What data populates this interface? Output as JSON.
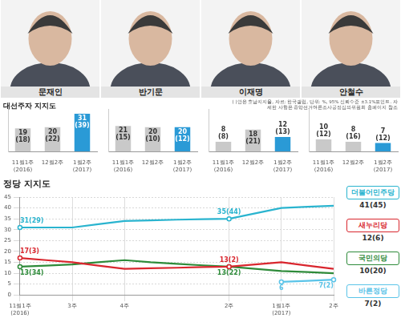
{
  "heading": "대선주자 지지도",
  "note": "( )안은 호남지지율, 자료: 한국갤럽, 단위: %, 95% 신뢰수준 ±3.1%포인트. 자세한 사항은 중앙선거여론조사공정심의위원회 홈페이지 참조",
  "chart_data": [
    {
      "type": "bar",
      "title": "문재인",
      "categories": [
        "11월1주(2016)",
        "12월2주",
        "1월2주(2017)"
      ],
      "values": [
        19,
        20,
        31
      ],
      "value_labels": [
        "19(18)",
        "20(22)",
        "31(39)"
      ],
      "colors": [
        "#c9c9c9",
        "#c9c9c9",
        "#2a9ad6"
      ],
      "ylim": [
        0,
        35
      ],
      "tick_labels": "x",
      "data_labels": true
    },
    {
      "type": "bar",
      "title": "반기문",
      "categories": [
        "11월1주(2016)",
        "12월2주",
        "1월2주(2017)"
      ],
      "values": [
        21,
        20,
        20
      ],
      "value_labels": [
        "21(15)",
        "20(10)",
        "20(12)"
      ],
      "colors": [
        "#c9c9c9",
        "#c9c9c9",
        "#2a9ad6"
      ],
      "ylim": [
        0,
        35
      ],
      "tick_labels": "x",
      "data_labels": true
    },
    {
      "type": "bar",
      "title": "이재명",
      "categories": [
        "11월1주(2016)",
        "12월2주",
        "1월2주(2017)"
      ],
      "values": [
        8,
        18,
        12
      ],
      "value_labels": [
        "8(8)",
        "18(21)",
        "12(13)"
      ],
      "colors": [
        "#c9c9c9",
        "#c9c9c9",
        "#2a9ad6"
      ],
      "ylim": [
        0,
        35
      ],
      "tick_labels": "x",
      "data_labels": true
    },
    {
      "type": "bar",
      "title": "안철수",
      "categories": [
        "11월1주(2016)",
        "12월2주",
        "1월2주(2017)"
      ],
      "values": [
        10,
        8,
        7
      ],
      "value_labels": [
        "10(12)",
        "8(16)",
        "7(12)"
      ],
      "colors": [
        "#c9c9c9",
        "#c9c9c9",
        "#2a9ad6"
      ],
      "ylim": [
        0,
        35
      ],
      "tick_labels": "x",
      "data_labels": true
    },
    {
      "type": "line",
      "title": "정당 지지도",
      "categories": [
        "11월1주(2016)",
        null,
        "3주",
        null,
        "4주",
        null,
        null,
        null,
        "2주",
        null,
        "1월1주(2017)",
        null,
        "2주"
      ],
      "series": [
        {
          "name": "더불어민주당",
          "color": "#2ab4cf",
          "marker": "circle",
          "values": [
            31,
            31,
            31,
            32.5,
            34,
            34.3,
            34.6,
            34.8,
            35,
            37.5,
            40,
            40.5,
            41
          ],
          "value_labels": [
            "31(29)",
            null,
            null,
            null,
            null,
            null,
            null,
            null,
            "35(44)",
            null,
            null,
            null,
            null
          ],
          "legend_label": "41(45)"
        },
        {
          "name": "새누리당",
          "color": "#d9262e",
          "marker": "circle",
          "values": [
            17,
            16,
            15,
            13.5,
            12,
            12.3,
            12.5,
            12.8,
            13,
            14,
            15,
            13.5,
            12
          ],
          "value_labels": [
            "17(3)",
            null,
            null,
            null,
            null,
            null,
            null,
            null,
            "13(2)",
            null,
            null,
            null,
            null
          ],
          "legend_label": "12(6)"
        },
        {
          "name": "국민의당",
          "color": "#2e8b3a",
          "marker": "circle",
          "values": [
            13,
            13.5,
            14,
            15,
            16,
            15,
            14.3,
            13.6,
            13,
            12,
            11,
            10.5,
            10
          ],
          "value_labels": [
            "13(34)",
            null,
            null,
            null,
            null,
            null,
            null,
            null,
            "13(22)",
            null,
            null,
            null,
            null
          ],
          "legend_label": "10(20)"
        },
        {
          "name": "바른정당",
          "color": "#5bc4e8",
          "marker": "circle",
          "values": [
            null,
            null,
            null,
            null,
            null,
            null,
            null,
            null,
            null,
            null,
            6,
            6.5,
            7
          ],
          "value_labels": [
            null,
            null,
            null,
            null,
            null,
            null,
            null,
            null,
            null,
            null,
            "6",
            null,
            "7(2)"
          ],
          "legend_label": "7(2)"
        }
      ],
      "ylim": [
        0,
        45
      ],
      "yticks": [
        0,
        5,
        10,
        15,
        20,
        25,
        30,
        35,
        40,
        45
      ],
      "grid": true,
      "legend": "right",
      "data_labels": true
    }
  ]
}
